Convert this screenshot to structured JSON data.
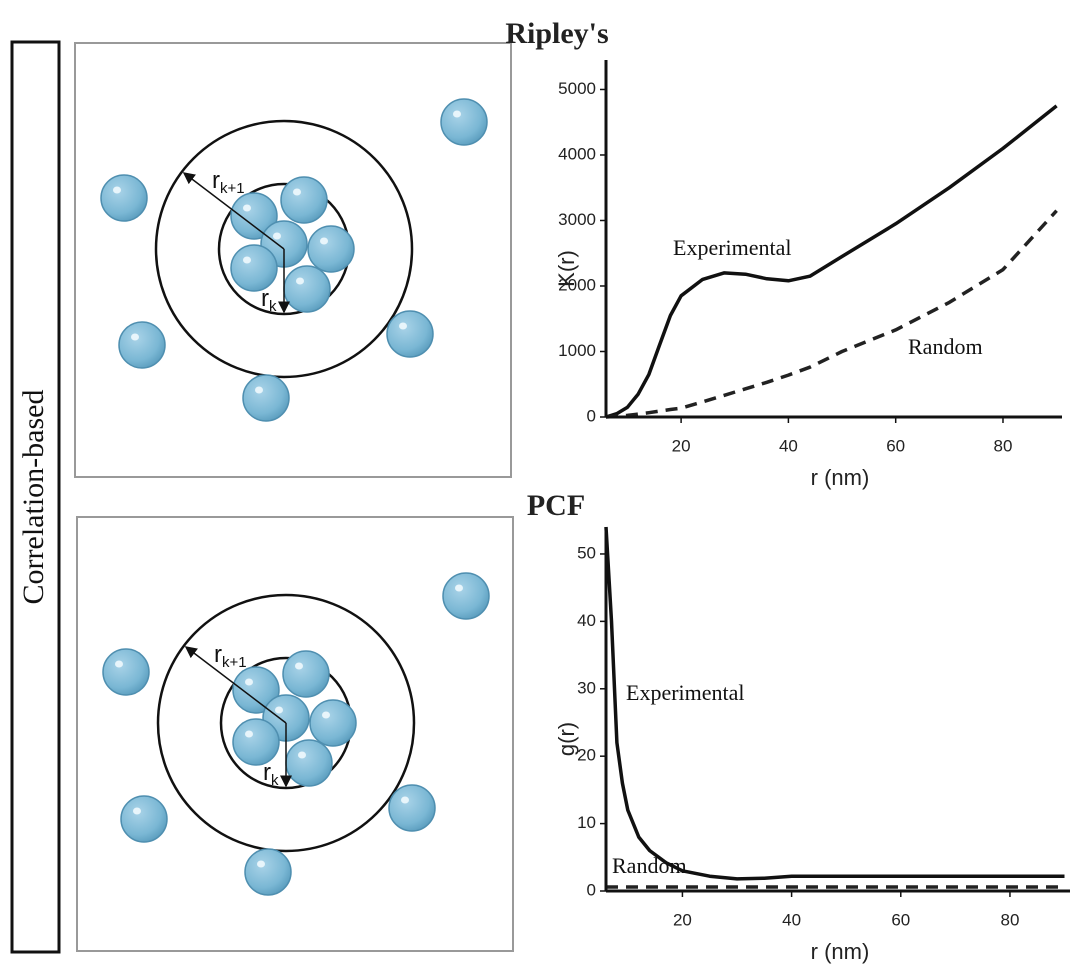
{
  "side_label": "Correlation-based",
  "panels": [
    {
      "outer_label": "r",
      "outer_sub": "k+1",
      "inner_label": "r",
      "inner_sub": "k"
    },
    {
      "outer_label": "r",
      "outer_sub": "k+1",
      "inner_label": "r",
      "inner_sub": "k"
    }
  ],
  "chart_data": [
    {
      "type": "line",
      "title": "Ripley's",
      "x_label": "r (nm)",
      "y_label": "K(r)",
      "x": [
        6,
        8,
        10,
        12,
        14,
        16,
        18,
        20,
        24,
        28,
        32,
        36,
        40,
        44,
        50,
        60,
        70,
        80,
        90
      ],
      "series": [
        {
          "name": "Experimental",
          "color": "#111111",
          "dashed": false,
          "values": [
            0,
            50,
            150,
            350,
            650,
            1100,
            1550,
            1850,
            2100,
            2200,
            2180,
            2110,
            2080,
            2150,
            2450,
            2950,
            3500,
            4100,
            4750
          ]
        },
        {
          "name": "Random",
          "color": "#222222",
          "dashed": true,
          "values": [
            0,
            10,
            25,
            45,
            65,
            90,
            115,
            135,
            230,
            330,
            430,
            530,
            640,
            760,
            1000,
            1330,
            1750,
            2250,
            3150
          ]
        }
      ],
      "xlim": [
        6,
        91
      ],
      "ylim": [
        0,
        5450
      ],
      "xticks": [
        20,
        40,
        60,
        80
      ],
      "yticks": [
        0,
        1000,
        2000,
        3000,
        4000,
        5000
      ],
      "grid": false
    },
    {
      "type": "line",
      "title": "PCF",
      "x_label": "r (nm)",
      "y_label": "g(r)",
      "x": [
        6,
        7,
        8,
        9,
        10,
        12,
        14,
        17,
        20,
        25,
        30,
        35,
        40,
        50,
        60,
        70,
        80,
        90
      ],
      "series": [
        {
          "name": "Experimental",
          "color": "#111111",
          "dashed": false,
          "values": [
            54,
            40,
            22,
            16,
            12,
            8,
            6,
            4.2,
            3,
            2.2,
            1.8,
            1.9,
            2.2,
            2.2,
            2.2,
            2.2,
            2.2,
            2.2
          ]
        },
        {
          "name": "Random",
          "color": "#222222",
          "dashed": true,
          "values": [
            0.6,
            0.6,
            0.6,
            0.6,
            0.6,
            0.6,
            0.6,
            0.6,
            0.6,
            0.6,
            0.6,
            0.6,
            0.6,
            0.6,
            0.6,
            0.6,
            0.6,
            0.6
          ]
        }
      ],
      "xlim": [
        6,
        91
      ],
      "ylim": [
        0,
        54
      ],
      "xticks": [
        20,
        40,
        60,
        80
      ],
      "yticks": [
        0,
        10,
        20,
        30,
        40,
        50
      ],
      "grid": false
    }
  ]
}
